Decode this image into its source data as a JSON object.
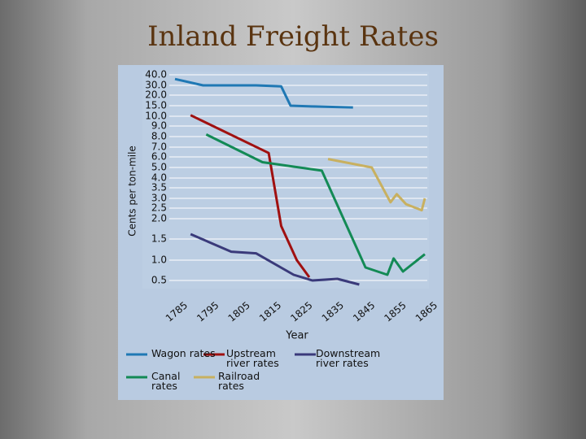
{
  "chart_data": {
    "type": "line",
    "title": "Inland Freight Rates",
    "ylabel": "Cents per ton-mile",
    "xlabel": "Year",
    "xlim": [
      1785,
      1865
    ],
    "xticks": [
      1785,
      1795,
      1805,
      1815,
      1825,
      1835,
      1845,
      1855,
      1865
    ],
    "ylim": [
      0.3,
      40
    ],
    "yticks": [
      {
        "value": 40,
        "label": "40.0"
      },
      {
        "value": 30,
        "label": "30.0"
      },
      {
        "value": 20,
        "label": "20.0"
      },
      {
        "value": 15,
        "label": "15.0"
      },
      {
        "value": 10,
        "label": "10.0"
      },
      {
        "value": 9,
        "label": "9.0"
      },
      {
        "value": 8,
        "label": "8.0"
      },
      {
        "value": 7,
        "label": "7.0"
      },
      {
        "value": 6,
        "label": "6.0"
      },
      {
        "value": 5,
        "label": "5.0"
      },
      {
        "value": 4,
        "label": "4.0"
      },
      3.5,
      {
        "value": 3,
        "label": "3.0"
      },
      2.5,
      {
        "value": 2,
        "label": "2.0"
      },
      1.5,
      {
        "value": 1,
        "label": "1.0"
      },
      0.5
    ],
    "grid": true,
    "series": [
      {
        "name": "Wagon rates",
        "color": "#1f78b4",
        "x": [
          1785,
          1794,
          1811,
          1819,
          1822,
          1830,
          1842
        ],
        "values": [
          36,
          30,
          30,
          29,
          15,
          14.6,
          14.2
        ]
      },
      {
        "name": "Upstream river rates",
        "color": "#a01010",
        "x": [
          1790,
          1815,
          1819,
          1824,
          1828
        ],
        "values": [
          10.5,
          6.4,
          1.82,
          1.0,
          0.58
        ]
      },
      {
        "name": "Downstream river rates",
        "color": "#3a3a7a",
        "x": [
          1790,
          1803,
          1811,
          1823,
          1829,
          1837,
          1844
        ],
        "values": [
          1.62,
          1.2,
          1.16,
          0.64,
          0.5,
          0.54,
          0.4
        ]
      },
      {
        "name": "Canal rates",
        "color": "#138a55",
        "x": [
          1795,
          1813,
          1832,
          1846,
          1853,
          1855,
          1858,
          1865
        ],
        "values": [
          8.2,
          5.5,
          4.7,
          0.82,
          0.64,
          1.04,
          0.72,
          1.14
        ]
      },
      {
        "name": "Railroad rates",
        "color": "#c8b060",
        "x": [
          1834,
          1848,
          1854,
          1856,
          1859,
          1864,
          1865
        ],
        "values": [
          5.8,
          5.0,
          2.8,
          3.2,
          2.7,
          2.4,
          3.0
        ]
      }
    ]
  }
}
